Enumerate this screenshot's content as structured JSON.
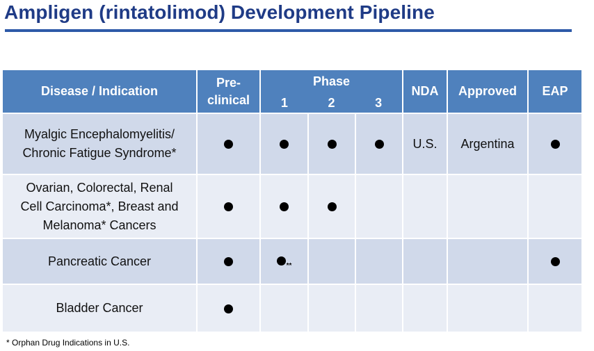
{
  "title": "Ampligen (rintatolimod) Development Pipeline",
  "header": {
    "disease": "Disease / Indication",
    "preclinical_line1": "Pre-",
    "preclinical_line2": "clinical",
    "phase": "Phase",
    "phase_1": "1",
    "phase_2": "2",
    "phase_3": "3",
    "nda": "NDA",
    "approved": "Approved",
    "eap": "EAP"
  },
  "rows": [
    {
      "line1": "Myalgic Encephalomyelitis/",
      "line2": "Chronic Fatigue Syndrome*",
      "line3": "",
      "preclinical": true,
      "phase1": true,
      "phase2": true,
      "phase3": true,
      "nda": "U.S.",
      "approved": "Argentina",
      "eap": true,
      "phase1_note": ""
    },
    {
      "line1": "Ovarian, Colorectal, Renal",
      "line2": "Cell Carcinoma*, Breast and",
      "line3": "Melanoma* Cancers",
      "preclinical": true,
      "phase1": true,
      "phase2": true,
      "phase3": false,
      "nda": "",
      "approved": "",
      "eap": false,
      "phase1_note": ""
    },
    {
      "line1": "Pancreatic Cancer",
      "line2": "",
      "line3": "",
      "preclinical": true,
      "phase1": true,
      "phase2": false,
      "phase3": false,
      "nda": "",
      "approved": "",
      "eap": true,
      "phase1_note": "**"
    },
    {
      "line1": "Bladder Cancer",
      "line2": "",
      "line3": "",
      "preclinical": true,
      "phase1": false,
      "phase2": false,
      "phase3": false,
      "nda": "",
      "approved": "",
      "eap": false,
      "phase1_note": ""
    }
  ],
  "footnote": "* Orphan Drug Indications in U.S.",
  "colors": {
    "title": "#1f3b86",
    "header_bg": "#4f81bd",
    "row_dark": "#d0d9ea",
    "row_light": "#e9edf5"
  },
  "icons": {
    "status_marker": "filled-circle"
  }
}
